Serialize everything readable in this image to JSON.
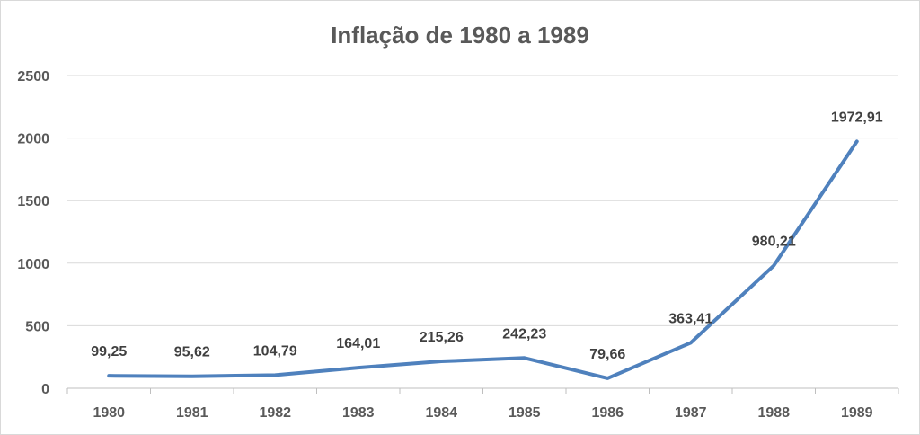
{
  "chart_data": {
    "type": "line",
    "title": "Inflação de 1980 a 1989",
    "xlabel": "",
    "ylabel": "",
    "categories": [
      "1980",
      "1981",
      "1982",
      "1983",
      "1984",
      "1985",
      "1986",
      "1987",
      "1988",
      "1989"
    ],
    "series": [
      {
        "values": [
          99.25,
          95.62,
          104.79,
          164.01,
          215.26,
          242.23,
          79.66,
          363.41,
          980.21,
          1972.91
        ],
        "labels": [
          "99,25",
          "95,62",
          "104,79",
          "164,01",
          "215,26",
          "242,23",
          "79,66",
          "363,41",
          "980,21",
          "1972,91"
        ],
        "color": "#4f81bd"
      }
    ],
    "ylim": [
      0,
      2500
    ],
    "yticks": [
      "0",
      "500",
      "1000",
      "1500",
      "2000",
      "2500"
    ],
    "grid": true,
    "legend": "none"
  }
}
